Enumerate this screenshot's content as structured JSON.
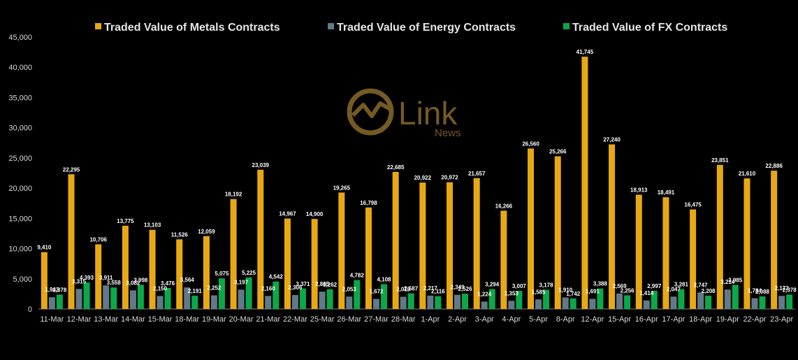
{
  "colors": {
    "metals": "#E8A814",
    "energy": "#61798A",
    "fx": "#0BA84A",
    "background": "#000000",
    "axis": "#808080",
    "logo": "#8A6A2B"
  },
  "logo": {
    "word": "Link",
    "sub": "News"
  },
  "chart_data": {
    "type": "bar",
    "ylim": [
      0,
      45000
    ],
    "yticks": [
      "0",
      "5,000",
      "10,000",
      "15,000",
      "20,000",
      "25,000",
      "30,000",
      "35,000",
      "40,000",
      "45,000"
    ],
    "legend_position": "top",
    "grid": false,
    "categories": [
      "11-Mar",
      "12-Mar",
      "13-Mar",
      "14-Mar",
      "15-Mar",
      "18-Mar",
      "19-Mar",
      "20-Mar",
      "21-Mar",
      "22-Mar",
      "25-Mar",
      "26-Mar",
      "27-Mar",
      "28-Mar",
      "1-Apr",
      "2-Apr",
      "3-Apr",
      "4-Apr",
      "5-Apr",
      "8-Apr",
      "12-Apr",
      "15-Apr",
      "16-Apr",
      "17-Apr",
      "18-Apr",
      "19-Apr",
      "22-Apr",
      "23-Apr"
    ],
    "series": [
      {
        "name": "Traded Value of Metals Contracts",
        "color": "#E8A814",
        "values": [
          9410,
          22295,
          10706,
          13775,
          13103,
          11526,
          12059,
          18192,
          23039,
          14967,
          14900,
          19265,
          16798,
          22685,
          20922,
          20972,
          21657,
          16266,
          26560,
          25266,
          41745,
          27240,
          18913,
          18491,
          16475,
          23851,
          21610,
          22886
        ],
        "labels": [
          "9,410",
          "22,295",
          "10,706",
          "13,775",
          "13,103",
          "11,526",
          "12,059",
          "18,192",
          "23,039",
          "14,967",
          "14,900",
          "19,265",
          "16,798",
          "22,685",
          "20,922",
          "20,972",
          "21,657",
          "16,266",
          "26,560",
          "25,266",
          "41,745",
          "27,240",
          "18,913",
          "18,491",
          "16,475",
          "23,851",
          "21,610",
          "22,886"
        ]
      },
      {
        "name": "Traded Value of Energy Contracts",
        "color": "#61798A",
        "values": [
          1943,
          3315,
          3911,
          3082,
          2150,
          3564,
          2252,
          3197,
          2160,
          2306,
          2865,
          2053,
          1672,
          2019,
          2217,
          2349,
          1224,
          1353,
          1585,
          1910,
          1691,
          2569,
          1414,
          2047,
          2747,
          3214,
          1784,
          2172
        ],
        "labels": [
          "1,943",
          "3,315",
          "3,911",
          "3,082",
          "2,150",
          "3,564",
          "2,252",
          "3,197",
          "2,160",
          "2,306",
          "2,865",
          "2,053",
          "1,672",
          "2,019",
          "2,217",
          "2,349",
          "1,224",
          "1,353",
          "1,585",
          "1,910",
          "1,691",
          "2,569",
          "1,414",
          "2,047",
          "2,747",
          "3,214",
          "1,784",
          "2,172"
        ]
      },
      {
        "name": "Traded Value of FX Contracts",
        "color": "#0BA84A",
        "values": [
          2378,
          4393,
          3558,
          3998,
          3476,
          2191,
          5075,
          5225,
          4542,
          3371,
          3262,
          4782,
          4108,
          2587,
          2116,
          2526,
          3294,
          3007,
          3178,
          1742,
          3388,
          2256,
          2997,
          3281,
          2208,
          3985,
          2088,
          2378
        ],
        "labels": [
          "2,378",
          "4,393",
          "3,558",
          "3,998",
          "3,476",
          "2,191",
          "5,075",
          "5,225",
          "4,542",
          "3,371",
          "3,262",
          "4,782",
          "4,108",
          "2,587",
          "2,116",
          "2,526",
          "3,294",
          "3,007",
          "3,178",
          "1,742",
          "3,388",
          "2,256",
          "2,997",
          "3,281",
          "2,208",
          "3,985",
          "2,088",
          "2,378"
        ]
      }
    ]
  }
}
